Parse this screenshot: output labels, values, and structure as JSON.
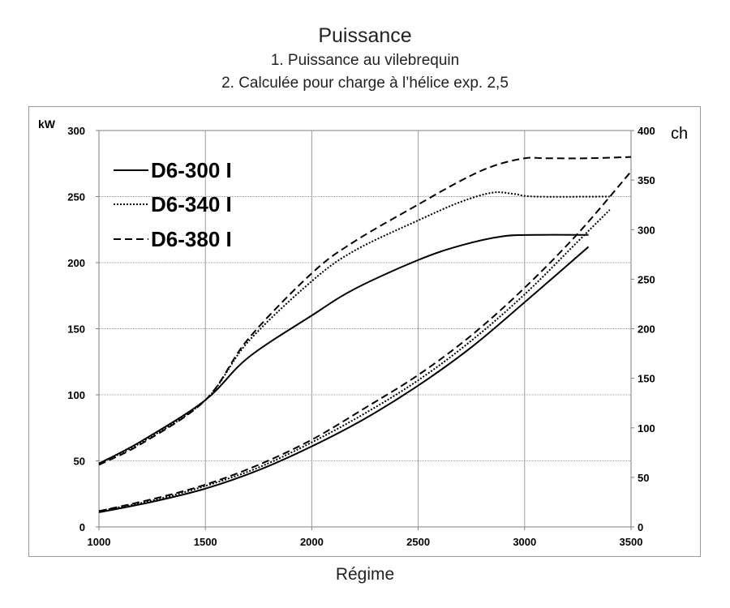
{
  "chart_data": {
    "type": "line",
    "title": "Puissance",
    "subtitle_1": "1. Puissance au vilebrequin",
    "subtitle_2": "2. Calculée pour charge à l’hélice exp. 2,5",
    "xlabel": "Régime",
    "ylabel_left": "kW",
    "ylabel_right": "ch",
    "xlim": [
      1000,
      3500
    ],
    "ylim_left": [
      0,
      300
    ],
    "ylim_right": [
      0,
      400
    ],
    "x_ticks": [
      1000,
      1500,
      2000,
      2500,
      3000,
      3500
    ],
    "y_ticks_left": [
      0,
      50,
      100,
      150,
      200,
      250,
      300
    ],
    "y_ticks_right": [
      0,
      50,
      100,
      150,
      200,
      250,
      300,
      350,
      400
    ],
    "grid": true,
    "legend_position": "top-left",
    "series": [
      {
        "name": "D6-300 I",
        "style": "solid",
        "crankshaft": {
          "x": [
            1000,
            1200,
            1500,
            1700,
            2000,
            2200,
            2500,
            2700,
            2900,
            3050,
            3300
          ],
          "y": [
            48,
            65,
            96,
            128,
            160,
            180,
            202,
            213,
            220,
            221,
            221
          ]
        },
        "propeller": {
          "x": [
            1000,
            1250,
            1500,
            1750,
            2000,
            2250,
            2500,
            2750,
            3000,
            3300
          ],
          "y": [
            11,
            19,
            29,
            43,
            61,
            82,
            107,
            136,
            170,
            212
          ]
        }
      },
      {
        "name": "D6-340 I",
        "style": "dotted",
        "crankshaft": {
          "x": [
            1000,
            1200,
            1500,
            1700,
            2000,
            2200,
            2500,
            2700,
            2850,
            2950,
            3050,
            3400
          ],
          "y": [
            48,
            64,
            96,
            140,
            186,
            209,
            232,
            246,
            253,
            252,
            250,
            250
          ]
        },
        "propeller": {
          "x": [
            1000,
            1250,
            1500,
            1750,
            2000,
            2250,
            2500,
            2750,
            3000,
            3250,
            3400
          ],
          "y": [
            12,
            20,
            31,
            45,
            64,
            86,
            111,
            141,
            176,
            216,
            240
          ]
        }
      },
      {
        "name": "D6-380 I",
        "style": "dashed",
        "crankshaft": {
          "x": [
            1000,
            1200,
            1500,
            1700,
            2000,
            2200,
            2500,
            2700,
            2850,
            3000,
            3100,
            3300,
            3500
          ],
          "y": [
            47,
            63,
            96,
            142,
            192,
            216,
            244,
            262,
            273,
            279,
            279,
            279,
            280
          ]
        },
        "propeller": {
          "x": [
            1000,
            1250,
            1500,
            1750,
            2000,
            2250,
            2500,
            2750,
            3000,
            3250,
            3500
          ],
          "y": [
            12,
            21,
            32,
            47,
            66,
            90,
            115,
            145,
            181,
            222,
            269
          ]
        }
      }
    ]
  }
}
